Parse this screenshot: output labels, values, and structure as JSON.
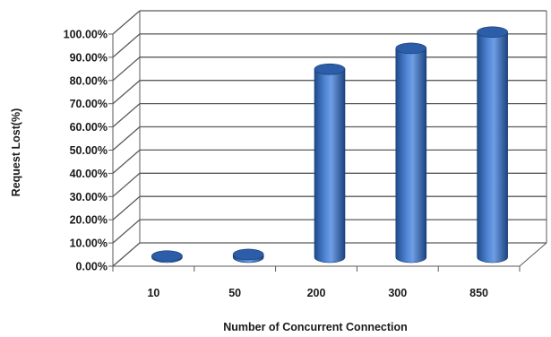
{
  "chart_data": {
    "type": "bar",
    "style": "3d-cylinder",
    "title": "",
    "xlabel": "Number of Concurrent Connection",
    "ylabel": "Request Lost(%)",
    "categories": [
      "10",
      "50",
      "200",
      "300",
      "850"
    ],
    "values": [
      0.5,
      1.2,
      81,
      90,
      97
    ],
    "ylim": [
      0,
      100
    ],
    "ytick_step": 10,
    "ytick_labels": [
      "0.00%",
      "10.00%",
      "20.00%",
      "30.00%",
      "40.00%",
      "50.00%",
      "60.00%",
      "70.00%",
      "80.00%",
      "90.00%",
      "100.00%"
    ],
    "grid": true,
    "legend": "none",
    "colors": {
      "bar_dark": "#1f4a8a",
      "bar_mid": "#3a72c4",
      "bar_light": "#7fa8e6",
      "bar_top": "#2c5da8",
      "grid": "#5a5a5a",
      "wall": "#ffffff"
    }
  }
}
